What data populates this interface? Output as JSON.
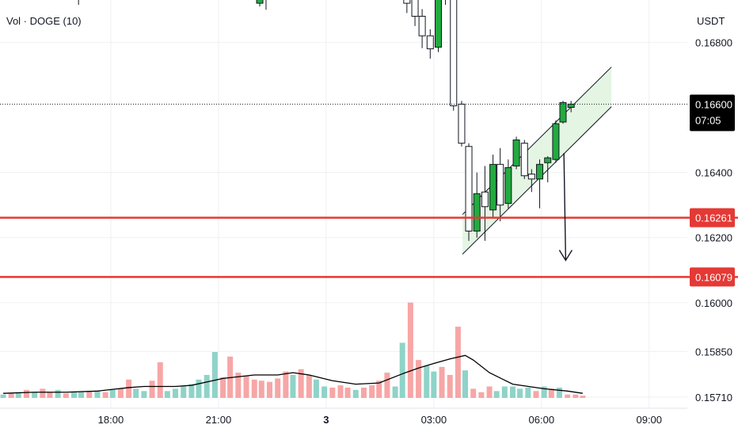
{
  "legend_text": "Vol · DOGE (10)",
  "price_unit": "USDT",
  "current_price_label": "0.16600",
  "countdown_label": "07:05",
  "colors": {
    "up": "#22ab3f",
    "down": "#ffffff",
    "candle_outline": "#131722",
    "vol_up": "#8fd3c8",
    "vol_down": "#f7a6a6",
    "vol_ma": "#000000",
    "level": "#e53935",
    "channel_fill": "#dff3dc",
    "grid": "#eef0f3",
    "tag_dark": "#000000"
  },
  "chart_data": {
    "type": "candlestick",
    "ylim": [
      0.157,
      0.1693
    ],
    "y_ticks": [
      0.168,
      0.164,
      0.162,
      0.16,
      0.1585,
      0.1571
    ],
    "y_tick_labels": [
      "0.16800",
      "0.16400",
      "0.16200",
      "0.16000",
      "0.15850",
      "0.15710"
    ],
    "x_ticks": [
      {
        "label": "18:00",
        "t": 12
      },
      {
        "label": "21:00",
        "t": 24
      },
      {
        "label": "3",
        "t": 36,
        "bold": true
      },
      {
        "label": "03:00",
        "t": 48
      },
      {
        "label": "06:00",
        "t": 60
      },
      {
        "label": "09:00",
        "t": 72
      }
    ],
    "horizontal_levels": [
      {
        "value": 0.16261,
        "label": "0.16261"
      },
      {
        "value": 0.16079,
        "label": "0.16079"
      }
    ],
    "channel": {
      "lower_start": {
        "t": 51.2,
        "price": 0.16149
      },
      "lower_end": {
        "t": 67.8,
        "price": 0.16602
      },
      "width": 0.00122
    },
    "arrow": {
      "from": {
        "t": 62.5,
        "price": 0.1646
      },
      "to": {
        "t": 62.7,
        "price": 0.1613
      }
    },
    "candles": [
      {
        "t": 7.6,
        "o": 0.16986,
        "h": 0.17026,
        "l": 0.16936,
        "c": 0.17004
      },
      {
        "t": 8.4,
        "o": 0.16986,
        "h": 0.17001,
        "l": 0.16915,
        "c": 0.16986
      },
      {
        "t": 28.6,
        "o": 0.1692,
        "h": 0.1699,
        "l": 0.1691,
        "c": 0.1695
      },
      {
        "t": 29.3,
        "o": 0.16935,
        "h": 0.16975,
        "l": 0.169,
        "c": 0.16945
      },
      {
        "t": 44.1,
        "o": 0.1696,
        "h": 0.1699,
        "l": 0.1693,
        "c": 0.16975
      },
      {
        "t": 45.0,
        "o": 0.1699,
        "h": 0.17002,
        "l": 0.1689,
        "c": 0.1692
      },
      {
        "t": 45.9,
        "o": 0.16945,
        "h": 0.1697,
        "l": 0.1685,
        "c": 0.1688
      },
      {
        "t": 46.7,
        "o": 0.1688,
        "h": 0.16902,
        "l": 0.16782,
        "c": 0.1682
      },
      {
        "t": 47.6,
        "o": 0.1682,
        "h": 0.1684,
        "l": 0.1675,
        "c": 0.1678
      },
      {
        "t": 48.5,
        "o": 0.16785,
        "h": 0.16955,
        "l": 0.1677,
        "c": 0.16947
      },
      {
        "t": 49.3,
        "o": 0.16947,
        "h": 0.16952,
        "l": 0.16915,
        "c": 0.16937
      },
      {
        "t": 50.2,
        "o": 0.16937,
        "h": 0.16945,
        "l": 0.1659,
        "c": 0.16605
      },
      {
        "t": 51.1,
        "o": 0.1661,
        "h": 0.1662,
        "l": 0.1648,
        "c": 0.1649
      },
      {
        "t": 51.9,
        "o": 0.1648,
        "h": 0.1649,
        "l": 0.1619,
        "c": 0.1622
      },
      {
        "t": 52.8,
        "o": 0.1622,
        "h": 0.164,
        "l": 0.162,
        "c": 0.16335
      },
      {
        "t": 53.7,
        "o": 0.1634,
        "h": 0.1642,
        "l": 0.1619,
        "c": 0.16295
      },
      {
        "t": 54.6,
        "o": 0.16285,
        "h": 0.16455,
        "l": 0.1626,
        "c": 0.16425
      },
      {
        "t": 55.4,
        "o": 0.16425,
        "h": 0.16475,
        "l": 0.1625,
        "c": 0.163
      },
      {
        "t": 56.3,
        "o": 0.16305,
        "h": 0.1644,
        "l": 0.1629,
        "c": 0.16415
      },
      {
        "t": 57.2,
        "o": 0.1642,
        "h": 0.1651,
        "l": 0.1641,
        "c": 0.165
      },
      {
        "t": 58.1,
        "o": 0.1649,
        "h": 0.165,
        "l": 0.1638,
        "c": 0.1639
      },
      {
        "t": 58.9,
        "o": 0.16395,
        "h": 0.1641,
        "l": 0.1634,
        "c": 0.1638
      },
      {
        "t": 59.8,
        "o": 0.1638,
        "h": 0.1644,
        "l": 0.1629,
        "c": 0.16425
      },
      {
        "t": 60.7,
        "o": 0.1643,
        "h": 0.1645,
        "l": 0.1637,
        "c": 0.16445
      },
      {
        "t": 61.6,
        "o": 0.1644,
        "h": 0.1656,
        "l": 0.1643,
        "c": 0.1655
      },
      {
        "t": 62.4,
        "o": 0.16555,
        "h": 0.1662,
        "l": 0.1655,
        "c": 0.16615
      },
      {
        "t": 63.3,
        "o": 0.166,
        "h": 0.1662,
        "l": 0.16585,
        "c": 0.1661
      }
    ],
    "volume_ylim": [
      0,
      1
    ],
    "volume_bars": [
      {
        "t": 0.0,
        "v": 0.03,
        "dir": "up"
      },
      {
        "t": 0.9,
        "v": 0.04,
        "dir": "down"
      },
      {
        "t": 1.7,
        "v": 0.05,
        "dir": "up"
      },
      {
        "t": 2.6,
        "v": 0.07,
        "dir": "down"
      },
      {
        "t": 3.5,
        "v": 0.05,
        "dir": "up"
      },
      {
        "t": 4.4,
        "v": 0.08,
        "dir": "down"
      },
      {
        "t": 5.2,
        "v": 0.05,
        "dir": "down"
      },
      {
        "t": 6.1,
        "v": 0.07,
        "dir": "up"
      },
      {
        "t": 7.0,
        "v": 0.04,
        "dir": "down"
      },
      {
        "t": 7.9,
        "v": 0.05,
        "dir": "up"
      },
      {
        "t": 8.7,
        "v": 0.05,
        "dir": "up"
      },
      {
        "t": 9.6,
        "v": 0.06,
        "dir": "down"
      },
      {
        "t": 10.5,
        "v": 0.06,
        "dir": "up"
      },
      {
        "t": 11.4,
        "v": 0.05,
        "dir": "down"
      },
      {
        "t": 12.2,
        "v": 0.07,
        "dir": "up"
      },
      {
        "t": 13.1,
        "v": 0.08,
        "dir": "down"
      },
      {
        "t": 14.0,
        "v": 0.16,
        "dir": "down"
      },
      {
        "t": 14.8,
        "v": 0.08,
        "dir": "up"
      },
      {
        "t": 15.7,
        "v": 0.06,
        "dir": "up"
      },
      {
        "t": 16.6,
        "v": 0.15,
        "dir": "down"
      },
      {
        "t": 17.5,
        "v": 0.31,
        "dir": "down"
      },
      {
        "t": 18.3,
        "v": 0.06,
        "dir": "up"
      },
      {
        "t": 19.2,
        "v": 0.08,
        "dir": "up"
      },
      {
        "t": 20.1,
        "v": 0.1,
        "dir": "up"
      },
      {
        "t": 21.0,
        "v": 0.12,
        "dir": "up"
      },
      {
        "t": 21.8,
        "v": 0.16,
        "dir": "up"
      },
      {
        "t": 22.7,
        "v": 0.2,
        "dir": "up"
      },
      {
        "t": 23.6,
        "v": 0.4,
        "dir": "up"
      },
      {
        "t": 24.5,
        "v": 0.18,
        "dir": "down"
      },
      {
        "t": 25.3,
        "v": 0.36,
        "dir": "down"
      },
      {
        "t": 26.2,
        "v": 0.22,
        "dir": "down"
      },
      {
        "t": 27.1,
        "v": 0.19,
        "dir": "down"
      },
      {
        "t": 28.0,
        "v": 0.16,
        "dir": "down"
      },
      {
        "t": 28.8,
        "v": 0.15,
        "dir": "down"
      },
      {
        "t": 29.7,
        "v": 0.14,
        "dir": "down"
      },
      {
        "t": 30.6,
        "v": 0.17,
        "dir": "down"
      },
      {
        "t": 31.5,
        "v": 0.23,
        "dir": "down"
      },
      {
        "t": 32.3,
        "v": 0.2,
        "dir": "up"
      },
      {
        "t": 33.2,
        "v": 0.25,
        "dir": "down"
      },
      {
        "t": 34.1,
        "v": 0.2,
        "dir": "down"
      },
      {
        "t": 34.9,
        "v": 0.16,
        "dir": "up"
      },
      {
        "t": 35.8,
        "v": 0.1,
        "dir": "up"
      },
      {
        "t": 36.7,
        "v": 0.09,
        "dir": "down"
      },
      {
        "t": 37.6,
        "v": 0.11,
        "dir": "down"
      },
      {
        "t": 38.4,
        "v": 0.09,
        "dir": "down"
      },
      {
        "t": 39.3,
        "v": 0.07,
        "dir": "up"
      },
      {
        "t": 40.2,
        "v": 0.09,
        "dir": "down"
      },
      {
        "t": 41.1,
        "v": 0.11,
        "dir": "down"
      },
      {
        "t": 41.9,
        "v": 0.15,
        "dir": "down"
      },
      {
        "t": 42.8,
        "v": 0.22,
        "dir": "down"
      },
      {
        "t": 43.7,
        "v": 0.1,
        "dir": "up"
      },
      {
        "t": 44.5,
        "v": 0.48,
        "dir": "up"
      },
      {
        "t": 45.4,
        "v": 0.83,
        "dir": "down"
      },
      {
        "t": 46.3,
        "v": 0.33,
        "dir": "down"
      },
      {
        "t": 47.2,
        "v": 0.28,
        "dir": "up"
      },
      {
        "t": 48.0,
        "v": 0.23,
        "dir": "up"
      },
      {
        "t": 48.9,
        "v": 0.27,
        "dir": "down"
      },
      {
        "t": 49.8,
        "v": 0.2,
        "dir": "down"
      },
      {
        "t": 50.7,
        "v": 0.62,
        "dir": "down"
      },
      {
        "t": 51.5,
        "v": 0.24,
        "dir": "up"
      },
      {
        "t": 52.4,
        "v": 0.08,
        "dir": "down"
      },
      {
        "t": 53.3,
        "v": 0.05,
        "dir": "down"
      },
      {
        "t": 54.2,
        "v": 0.1,
        "dir": "down"
      },
      {
        "t": 55.0,
        "v": 0.06,
        "dir": "up"
      },
      {
        "t": 55.9,
        "v": 0.1,
        "dir": "up"
      },
      {
        "t": 56.8,
        "v": 0.1,
        "dir": "up"
      },
      {
        "t": 57.6,
        "v": 0.08,
        "dir": "up"
      },
      {
        "t": 58.5,
        "v": 0.09,
        "dir": "up"
      },
      {
        "t": 59.4,
        "v": 0.06,
        "dir": "down"
      },
      {
        "t": 60.3,
        "v": 0.1,
        "dir": "up"
      },
      {
        "t": 61.1,
        "v": 0.08,
        "dir": "down"
      },
      {
        "t": 62.0,
        "v": 0.09,
        "dir": "up"
      },
      {
        "t": 62.9,
        "v": 0.03,
        "dir": "down"
      },
      {
        "t": 63.8,
        "v": 0.03,
        "dir": "down"
      },
      {
        "t": 64.6,
        "v": 0.02,
        "dir": "down"
      }
    ],
    "volume_ma": [
      {
        "t": 0,
        "v": 0.04
      },
      {
        "t": 3.5,
        "v": 0.05
      },
      {
        "t": 7,
        "v": 0.05
      },
      {
        "t": 10.5,
        "v": 0.06
      },
      {
        "t": 14,
        "v": 0.09
      },
      {
        "t": 15.7,
        "v": 0.1
      },
      {
        "t": 19.2,
        "v": 0.1
      },
      {
        "t": 21,
        "v": 0.11
      },
      {
        "t": 24.5,
        "v": 0.17
      },
      {
        "t": 28,
        "v": 0.2
      },
      {
        "t": 30.6,
        "v": 0.2
      },
      {
        "t": 32.3,
        "v": 0.22
      },
      {
        "t": 34.1,
        "v": 0.2
      },
      {
        "t": 36.7,
        "v": 0.15
      },
      {
        "t": 39.3,
        "v": 0.12
      },
      {
        "t": 41.9,
        "v": 0.13
      },
      {
        "t": 44.5,
        "v": 0.21
      },
      {
        "t": 46.3,
        "v": 0.26
      },
      {
        "t": 48,
        "v": 0.3
      },
      {
        "t": 49.8,
        "v": 0.34
      },
      {
        "t": 51.5,
        "v": 0.37
      },
      {
        "t": 52.4,
        "v": 0.33
      },
      {
        "t": 54.2,
        "v": 0.22
      },
      {
        "t": 56.8,
        "v": 0.12
      },
      {
        "t": 60.3,
        "v": 0.08
      },
      {
        "t": 62.9,
        "v": 0.06
      },
      {
        "t": 64.6,
        "v": 0.04
      }
    ]
  }
}
